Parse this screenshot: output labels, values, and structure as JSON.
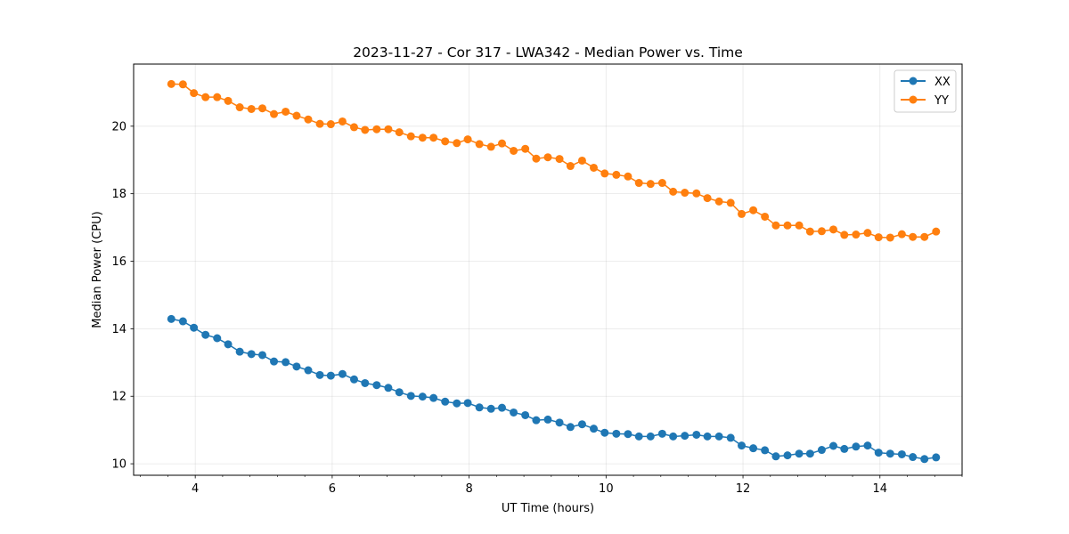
{
  "chart_data": {
    "type": "line",
    "title": "2023-11-27 - Cor 317 - LWA342 - Median Power vs. Time",
    "xlabel": "UT Time (hours)",
    "ylabel": "Median Power (CPU)",
    "xlim": [
      3.1,
      15.2
    ],
    "ylim": [
      9.66,
      21.84
    ],
    "xticks": [
      4,
      6,
      8,
      10,
      12,
      14
    ],
    "xtick_labels": [
      "4",
      "6",
      "8",
      "10",
      "12",
      "14"
    ],
    "xminor_step": 0.4,
    "yticks": [
      10,
      12,
      14,
      16,
      18,
      20
    ],
    "ytick_labels": [
      "10",
      "12",
      "14",
      "16",
      "18",
      "20"
    ],
    "grid": true,
    "legend_location": "top-right",
    "x": [
      3.65,
      3.82,
      3.98,
      4.15,
      4.32,
      4.48,
      4.65,
      4.82,
      4.98,
      5.15,
      5.32,
      5.48,
      5.65,
      5.82,
      5.98,
      6.15,
      6.32,
      6.48,
      6.65,
      6.82,
      6.98,
      7.15,
      7.32,
      7.48,
      7.65,
      7.82,
      7.98,
      8.15,
      8.32,
      8.48,
      8.65,
      8.82,
      8.98,
      9.15,
      9.32,
      9.48,
      9.65,
      9.82,
      9.98,
      10.15,
      10.32,
      10.48,
      10.65,
      10.82,
      10.98,
      11.15,
      11.32,
      11.48,
      11.65,
      11.82,
      11.98,
      12.15,
      12.32,
      12.48,
      12.65,
      12.82,
      12.98,
      13.15,
      13.32,
      13.48,
      13.65,
      13.82,
      13.98,
      14.15,
      14.32,
      14.48,
      14.65,
      14.82
    ],
    "series": [
      {
        "name": "XX",
        "color": "#1f77b4",
        "values": [
          14.29,
          14.22,
          14.03,
          13.82,
          13.72,
          13.54,
          13.32,
          13.25,
          13.22,
          13.03,
          13.01,
          12.88,
          12.77,
          12.63,
          12.61,
          12.66,
          12.5,
          12.39,
          12.33,
          12.25,
          12.12,
          12.01,
          11.99,
          11.95,
          11.84,
          11.79,
          11.8,
          11.67,
          11.63,
          11.66,
          11.52,
          11.44,
          11.29,
          11.31,
          11.22,
          11.09,
          11.17,
          11.04,
          10.92,
          10.89,
          10.88,
          10.81,
          10.81,
          10.89,
          10.81,
          10.83,
          10.86,
          10.81,
          10.81,
          10.77,
          10.54,
          10.46,
          10.4,
          10.22,
          10.25,
          10.3,
          10.3,
          10.41,
          10.53,
          10.44,
          10.51,
          10.54,
          10.33,
          10.3,
          10.28,
          10.2,
          10.14,
          10.19
        ]
      },
      {
        "name": "YY",
        "color": "#ff7f0e",
        "values": [
          21.25,
          21.24,
          20.98,
          20.86,
          20.86,
          20.75,
          20.56,
          20.51,
          20.53,
          20.36,
          20.43,
          20.31,
          20.2,
          20.07,
          20.06,
          20.14,
          19.97,
          19.89,
          19.91,
          19.91,
          19.82,
          19.7,
          19.66,
          19.66,
          19.55,
          19.5,
          19.61,
          19.47,
          19.39,
          19.49,
          19.27,
          19.33,
          19.04,
          19.08,
          19.03,
          18.82,
          18.98,
          18.77,
          18.6,
          18.56,
          18.51,
          18.32,
          18.29,
          18.32,
          18.06,
          18.03,
          18.01,
          17.87,
          17.77,
          17.73,
          17.4,
          17.51,
          17.32,
          17.06,
          17.06,
          17.06,
          16.88,
          16.89,
          16.94,
          16.78,
          16.79,
          16.84,
          16.71,
          16.7,
          16.8,
          16.72,
          16.72,
          16.88
        ]
      }
    ]
  }
}
